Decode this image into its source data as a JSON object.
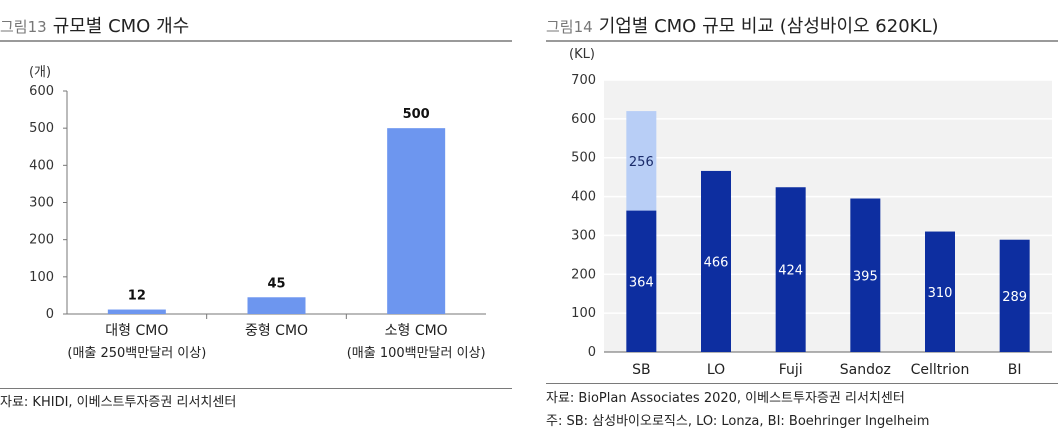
{
  "figure13": {
    "number": "그림13",
    "title": "규모별 CMO 개수",
    "source": "자료: KHIDI, 이베스트투자증권 리서치센터",
    "bar_color": "#6d96ef"
  },
  "figure14": {
    "number": "그림14",
    "title": "기업별 CMO 규모 비교 (삼성바이오 620KL)",
    "source": "자료: BioPlan Associates 2020, 이베스트투자증권 리서치센터",
    "note": "주: SB: 삼성바이오로직스, LO: Lonza, BI: Boehringer Ingelheim",
    "bar_color_main": "#0d2ea0",
    "bar_color_extra": "#b8cef6",
    "plot_background": "#f2f2f2"
  },
  "chart_data": [
    {
      "type": "bar",
      "title": "규모별 CMO 개수",
      "unit_label": "(개)",
      "categories": [
        [
          "대형 CMO",
          "(매출 250백만달러 이상)"
        ],
        [
          "중형 CMO",
          ""
        ],
        [
          "소형 CMO",
          "(매출 100백만달러 이상)"
        ]
      ],
      "values": [
        12,
        45,
        500
      ],
      "data_labels": [
        "12",
        "45",
        "500"
      ],
      "ylim": [
        0,
        600
      ],
      "yticks": [
        0,
        100,
        200,
        300,
        400,
        500,
        600
      ],
      "grid": false
    },
    {
      "type": "bar",
      "stacked": true,
      "title": "기업별 CMO 규모 비교 (삼성바이오 620KL)",
      "unit_label": "(KL)",
      "categories": [
        "SB",
        "LO",
        "Fuji",
        "Sandoz",
        "Celltrion",
        "BI"
      ],
      "series": [
        {
          "values": [
            364,
            466,
            424,
            395,
            310,
            289
          ],
          "color": "#0d2ea0"
        },
        {
          "values": [
            256,
            null,
            null,
            null,
            null,
            null
          ],
          "color": "#b8cef6"
        }
      ],
      "data_labels": [
        [
          "364",
          "466",
          "424",
          "395",
          "310",
          "289"
        ],
        [
          "256",
          "",
          "",
          "",
          "",
          ""
        ]
      ],
      "ylim": [
        0,
        700
      ],
      "yticks": [
        0,
        100,
        200,
        300,
        400,
        500,
        600,
        700
      ],
      "grid": true
    }
  ]
}
